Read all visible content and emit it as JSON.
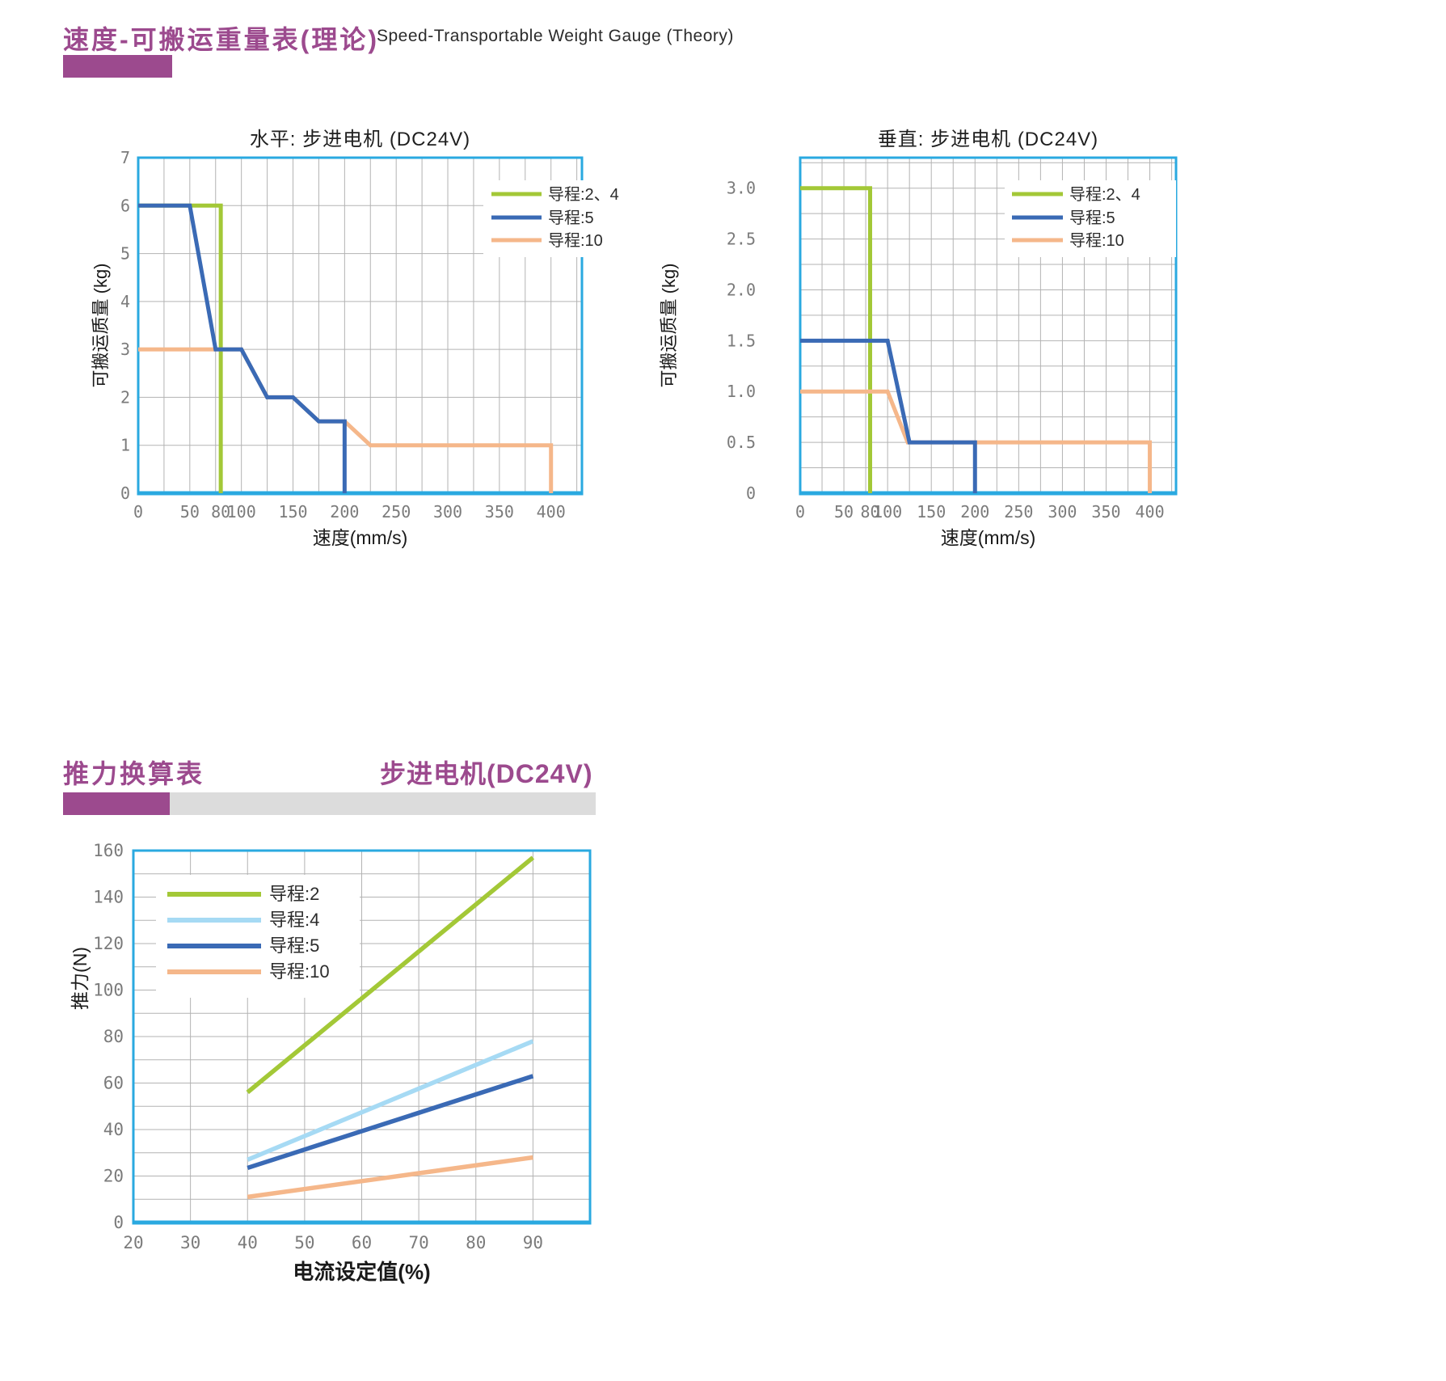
{
  "sections": [
    {
      "title_zh": "速度-可搬运重量表(理论)",
      "title_en": "Speed-Transportable Weight Gauge (Theory)"
    },
    {
      "title_zh": "推力换算表",
      "title_right": "步进电机(DC24V)"
    }
  ],
  "colors": {
    "purple_accent": "#9c4a8e",
    "gray_bar": "#dcdcdc",
    "frame_blue": "#2aa9e0",
    "grid_gray": "#b3b3b3",
    "tick_gray": "#7b7b7b",
    "lead_2_4_green": "#a3c837",
    "lead_5_blue": "#3a6ab5",
    "lead_4_lightblue": "#a6daf4",
    "lead_10_orange": "#f5b78a"
  },
  "chart_data": [
    {
      "type": "line",
      "title": "水平: 步进电机 (DC24V)",
      "xlabel": "速度(mm/s)",
      "ylabel": "可搬运质量 (kg)",
      "xlim": [
        0,
        430
      ],
      "ylim": [
        0,
        7
      ],
      "grid": [
        25,
        1
      ],
      "xticks": [
        0,
        50,
        80,
        100,
        150,
        200,
        250,
        300,
        350,
        400
      ],
      "xtick_labels": [
        "0",
        "50",
        "80",
        "100",
        "150",
        "200",
        "250",
        "300",
        "350",
        "400"
      ],
      "yticks": [
        0,
        1,
        2,
        3,
        4,
        5,
        6,
        7
      ],
      "ytick_labels": [
        "0",
        "1",
        "2",
        "3",
        "4",
        "5",
        "6",
        "7"
      ],
      "legend_entries": [
        {
          "label": "导程:2、4",
          "color": "#a3c837"
        },
        {
          "label": "导程:5",
          "color": "#3a6ab5"
        },
        {
          "label": "导程:10",
          "color": "#f5b78a"
        }
      ],
      "series": [
        {
          "name": "导程:2、4",
          "color": "#a3c837",
          "points": [
            [
              0,
              6
            ],
            [
              80,
              6
            ],
            [
              80,
              0
            ]
          ]
        },
        {
          "name": "导程:10",
          "color": "#f5b78a",
          "points": [
            [
              0,
              3
            ],
            [
              100,
              3
            ],
            [
              125,
              2
            ],
            [
              150,
              2
            ],
            [
              175,
              1.5
            ],
            [
              200,
              1.5
            ],
            [
              225,
              1
            ],
            [
              400,
              1
            ],
            [
              400,
              0
            ]
          ]
        },
        {
          "name": "导程:5",
          "color": "#3a6ab5",
          "points": [
            [
              0,
              6
            ],
            [
              50,
              6
            ],
            [
              75,
              3
            ],
            [
              100,
              3
            ],
            [
              125,
              2
            ],
            [
              150,
              2
            ],
            [
              175,
              1.5
            ],
            [
              200,
              1.5
            ],
            [
              200,
              0
            ]
          ]
        }
      ]
    },
    {
      "type": "line",
      "title": "垂直: 步进电机 (DC24V)",
      "xlabel": "速度(mm/s)",
      "ylabel": "可搬运质量 (kg)",
      "xlim": [
        0,
        430
      ],
      "ylim": [
        0,
        3.3
      ],
      "grid": [
        25,
        0.25
      ],
      "xticks": [
        0,
        50,
        80,
        100,
        150,
        200,
        250,
        300,
        350,
        400
      ],
      "xtick_labels": [
        "0",
        "50",
        "80",
        "100",
        "150",
        "200",
        "250",
        "300",
        "350",
        "400"
      ],
      "yticks": [
        0,
        0.5,
        1.0,
        1.5,
        2.0,
        2.5,
        3.0
      ],
      "ytick_labels": [
        "0",
        "0.5",
        "1.0",
        "1.5",
        "2.0",
        "2.5",
        "3.0"
      ],
      "legend_entries": [
        {
          "label": "导程:2、4",
          "color": "#a3c837"
        },
        {
          "label": "导程:5",
          "color": "#3a6ab5"
        },
        {
          "label": "导程:10",
          "color": "#f5b78a"
        }
      ],
      "series": [
        {
          "name": "导程:2、4",
          "color": "#a3c837",
          "points": [
            [
              0,
              3
            ],
            [
              80,
              3
            ],
            [
              80,
              0
            ]
          ]
        },
        {
          "name": "导程:10",
          "color": "#f5b78a",
          "points": [
            [
              0,
              1
            ],
            [
              100,
              1
            ],
            [
              123,
              0.5
            ],
            [
              400,
              0.5
            ],
            [
              400,
              0
            ]
          ]
        },
        {
          "name": "导程:5",
          "color": "#3a6ab5",
          "points": [
            [
              0,
              1.5
            ],
            [
              100,
              1.5
            ],
            [
              125,
              0.5
            ],
            [
              200,
              0.5
            ],
            [
              200,
              0
            ]
          ]
        }
      ]
    },
    {
      "type": "line",
      "title": "",
      "xlabel": "电流设定值(%)",
      "ylabel": "推力(N)",
      "xlim": [
        20,
        100
      ],
      "ylim": [
        0,
        160
      ],
      "grid": [
        10,
        10
      ],
      "xticks": [
        20,
        30,
        40,
        50,
        60,
        70,
        80,
        90
      ],
      "xtick_labels": [
        "20",
        "30",
        "40",
        "50",
        "60",
        "70",
        "80",
        "90"
      ],
      "yticks": [
        0,
        20,
        40,
        60,
        80,
        100,
        120,
        140,
        160
      ],
      "ytick_labels": [
        "0",
        "20",
        "40",
        "60",
        "80",
        "100",
        "120",
        "140",
        "160"
      ],
      "legend_entries": [
        {
          "label": "导程:2",
          "color": "#a3c837"
        },
        {
          "label": "导程:4",
          "color": "#a6daf4"
        },
        {
          "label": "导程:5",
          "color": "#3a6ab5"
        },
        {
          "label": "导程:10",
          "color": "#f5b78a"
        }
      ],
      "series": [
        {
          "name": "导程:2",
          "color": "#a3c837",
          "points": [
            [
              40,
              56
            ],
            [
              90,
              157
            ]
          ]
        },
        {
          "name": "导程:4",
          "color": "#a6daf4",
          "points": [
            [
              40,
              27
            ],
            [
              90,
              78
            ]
          ]
        },
        {
          "name": "导程:5",
          "color": "#3a6ab5",
          "points": [
            [
              40,
              23.5
            ],
            [
              90,
              63
            ]
          ]
        },
        {
          "name": "导程:10",
          "color": "#f5b78a",
          "points": [
            [
              40,
              11
            ],
            [
              65,
              19.5
            ],
            [
              90,
              28
            ]
          ]
        }
      ]
    }
  ]
}
